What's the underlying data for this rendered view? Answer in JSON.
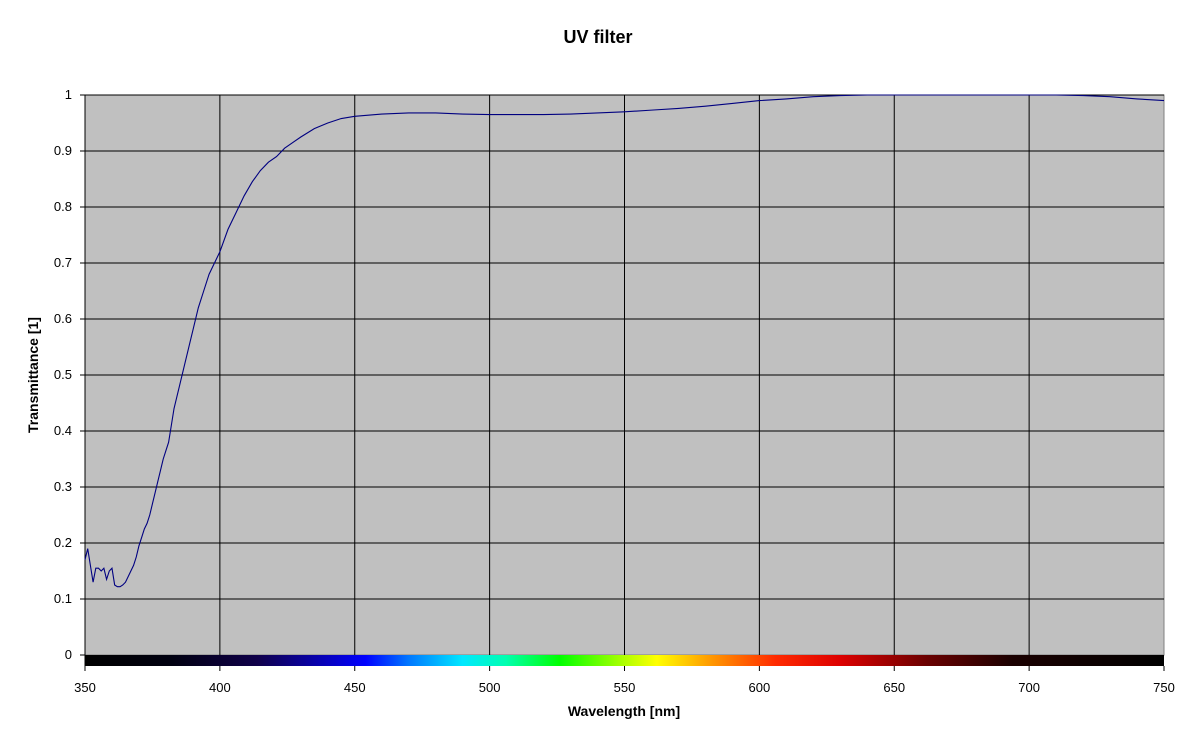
{
  "chart_data": {
    "type": "line",
    "title": "UV filter",
    "xlabel": "Wavelength [nm]",
    "ylabel": "Transmittance [1]",
    "xlim": [
      350,
      750
    ],
    "ylim": [
      0,
      1
    ],
    "x_ticks": [
      "350",
      "400",
      "450",
      "500",
      "550",
      "600",
      "650",
      "700",
      "750"
    ],
    "y_ticks": [
      "0",
      "0.1",
      "0.2",
      "0.3",
      "0.4",
      "0.5",
      "0.6",
      "0.7",
      "0.8",
      "0.9",
      "1"
    ],
    "grid": true,
    "legend": "none",
    "plot_background": "#c0c0c0",
    "line_color": "#000080",
    "spectrum_bar": true,
    "series": [
      {
        "x": [
          350,
          351,
          352,
          353,
          354,
          355,
          356,
          357,
          358,
          359,
          360,
          361,
          362,
          363,
          364,
          365,
          366,
          367,
          368,
          369,
          370,
          371,
          372,
          373,
          374,
          375,
          376,
          377,
          378,
          379,
          380,
          381,
          382,
          383,
          384,
          385,
          386,
          387,
          388,
          389,
          390,
          392,
          394,
          396,
          398,
          400,
          403,
          406,
          409,
          412,
          415,
          418,
          421,
          424,
          427,
          430,
          435,
          440,
          445,
          450,
          460,
          470,
          480,
          490,
          500,
          510,
          520,
          530,
          540,
          550,
          560,
          570,
          580,
          590,
          600,
          610,
          620,
          630,
          640,
          650,
          660,
          670,
          680,
          690,
          700,
          710,
          720,
          730,
          740,
          750
        ],
        "values": [
          0.17,
          0.19,
          0.16,
          0.13,
          0.155,
          0.155,
          0.15,
          0.155,
          0.135,
          0.15,
          0.155,
          0.125,
          0.122,
          0.122,
          0.125,
          0.13,
          0.14,
          0.15,
          0.16,
          0.175,
          0.195,
          0.21,
          0.225,
          0.235,
          0.25,
          0.27,
          0.29,
          0.31,
          0.33,
          0.35,
          0.365,
          0.38,
          0.41,
          0.44,
          0.46,
          0.48,
          0.5,
          0.52,
          0.54,
          0.56,
          0.58,
          0.62,
          0.65,
          0.68,
          0.7,
          0.72,
          0.76,
          0.79,
          0.82,
          0.845,
          0.865,
          0.88,
          0.89,
          0.905,
          0.915,
          0.925,
          0.94,
          0.95,
          0.958,
          0.962,
          0.966,
          0.968,
          0.968,
          0.966,
          0.965,
          0.965,
          0.965,
          0.966,
          0.968,
          0.97,
          0.973,
          0.976,
          0.98,
          0.985,
          0.99,
          0.993,
          0.997,
          0.999,
          1.0,
          1.0,
          1.0,
          1.0,
          1.0,
          1.0,
          1.0,
          1.0,
          0.999,
          0.997,
          0.993,
          0.99
        ]
      }
    ]
  }
}
